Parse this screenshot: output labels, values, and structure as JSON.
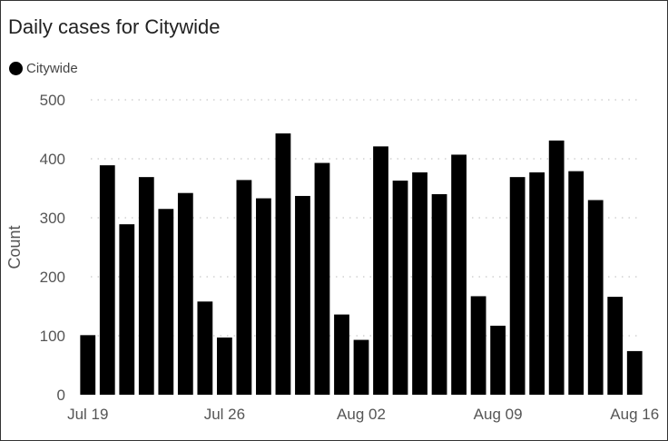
{
  "chart_data": {
    "type": "bar",
    "title": "Daily cases for Citywide",
    "ylabel": "Count",
    "xlabel": "",
    "ylim": [
      0,
      500
    ],
    "yticks": [
      0,
      100,
      200,
      300,
      400,
      500
    ],
    "grid": true,
    "legend": {
      "placement": "top-left",
      "entries": [
        "Citywide"
      ]
    },
    "series": [
      {
        "name": "Citywide",
        "color": "#000000",
        "values": [
          101,
          389,
          289,
          369,
          315,
          342,
          158,
          97,
          364,
          333,
          443,
          337,
          393,
          136,
          93,
          421,
          363,
          377,
          340,
          407,
          167,
          117,
          369,
          377,
          431,
          379,
          330,
          166,
          74
        ]
      }
    ],
    "categories": [
      "Jul 19",
      "Jul 20",
      "Jul 21",
      "Jul 22",
      "Jul 23",
      "Jul 24",
      "Jul 25",
      "Jul 26",
      "Jul 27",
      "Jul 28",
      "Jul 29",
      "Jul 30",
      "Jul 31",
      "Aug 01",
      "Aug 02",
      "Aug 03",
      "Aug 04",
      "Aug 05",
      "Aug 06",
      "Aug 07",
      "Aug 08",
      "Aug 09",
      "Aug 10",
      "Aug 11",
      "Aug 12",
      "Aug 13",
      "Aug 14",
      "Aug 15",
      "Aug 16"
    ],
    "xtick_labels": [
      "Jul 19",
      "Jul 26",
      "Aug 02",
      "Aug 09",
      "Aug 16"
    ]
  }
}
